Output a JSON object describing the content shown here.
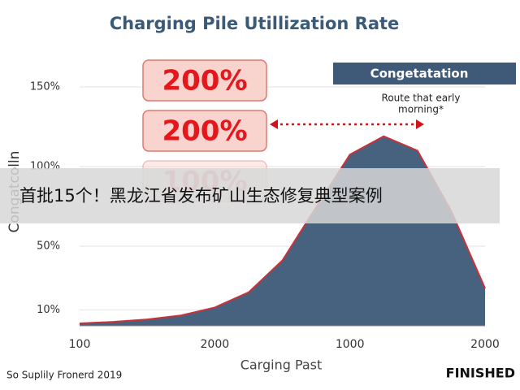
{
  "chart_data": {
    "type": "area",
    "title": "Charging Pile Utillization Rate",
    "y_label": "Congatcolln",
    "x_label": "Carging Past",
    "x": [
      0,
      1,
      2,
      3,
      4,
      5,
      6,
      7,
      8,
      9,
      10,
      11,
      12
    ],
    "xlim": [
      0,
      12
    ],
    "xticks": [
      {
        "value": 0,
        "label": "100"
      },
      {
        "value": 4,
        "label": "2000"
      },
      {
        "value": 8,
        "label": "1000"
      },
      {
        "value": 12,
        "label": "2000"
      }
    ],
    "series": [
      {
        "color": "#46627f",
        "values": [
          1.5,
          2.5,
          4,
          6.5,
          11.5,
          21,
          41,
          74.5,
          107.5,
          119,
          110,
          72,
          23.5
        ]
      }
    ],
    "ylim": [
      0,
      160
    ],
    "yticks": [
      {
        "value": 150,
        "label": "150%"
      },
      {
        "value": 100,
        "label": "100%"
      },
      {
        "value": 50,
        "label": "50%"
      },
      {
        "value": 10,
        "label": "10%"
      }
    ],
    "grid": true,
    "callouts": [
      "200%",
      "200%",
      "100%"
    ],
    "banner": "Congetatation",
    "banner_note": [
      "Route that early",
      "morning*"
    ],
    "source": "So Suplily Fronerd 2019",
    "status": "FINISHED"
  },
  "overlay": "首批15个！黑龙江省发布矿山生态修复典型案例"
}
